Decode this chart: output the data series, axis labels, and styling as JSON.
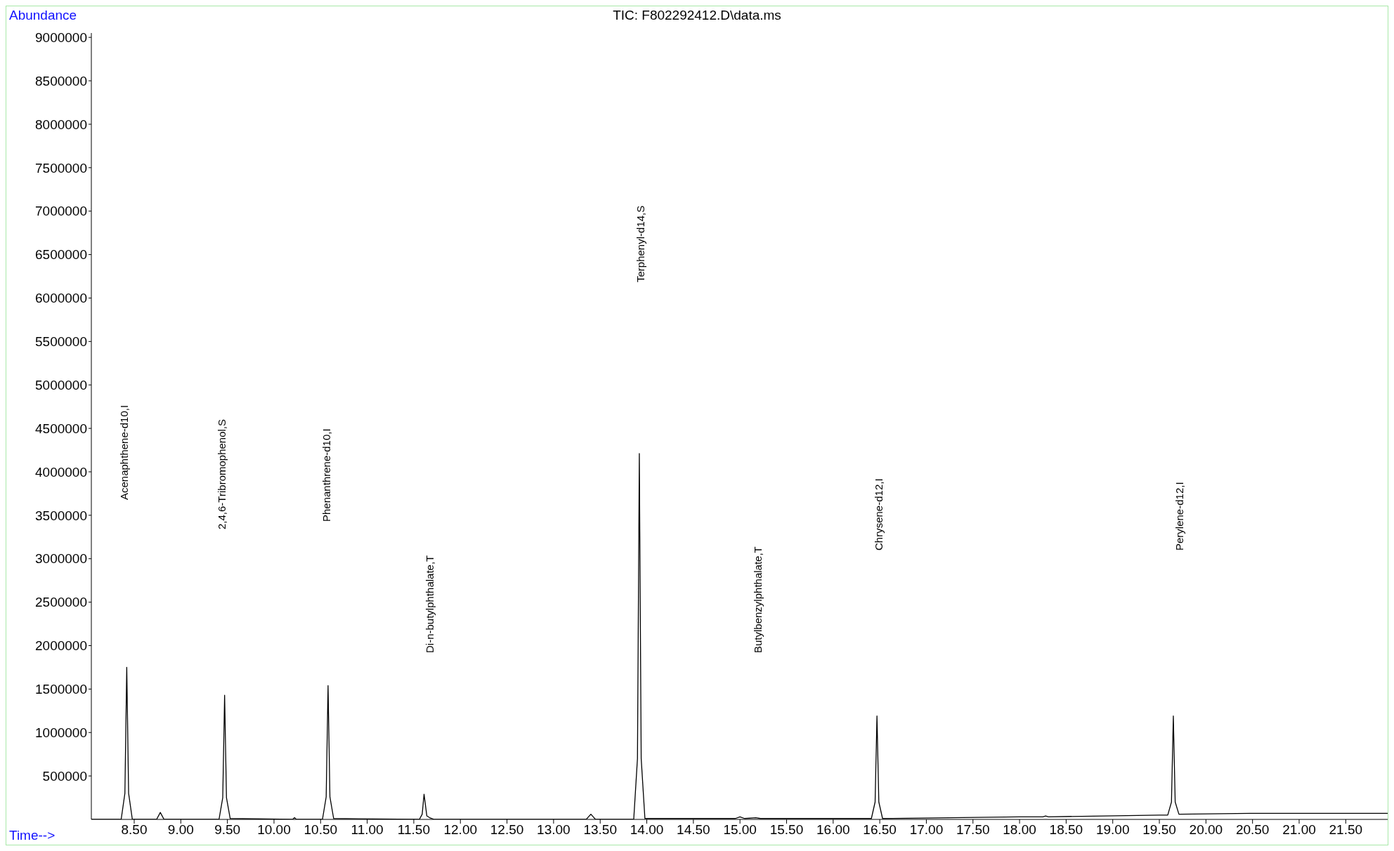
{
  "chart_data": {
    "type": "line",
    "title": "TIC: F802292412.D\\data.ms",
    "xlabel": "Time-->",
    "ylabel": "Abundance",
    "x": [
      8.04,
      8.36,
      8.4,
      8.42,
      8.44,
      8.48,
      8.74,
      8.78,
      8.82,
      9.41,
      9.45,
      9.47,
      9.49,
      9.53,
      10.2,
      10.22,
      10.24,
      10.52,
      10.56,
      10.58,
      10.6,
      10.64,
      11.56,
      11.59,
      11.61,
      11.64,
      11.67,
      11.72,
      13.35,
      13.4,
      13.45,
      13.86,
      13.9,
      13.92,
      13.94,
      13.98,
      14.95,
      15.0,
      15.05,
      15.17,
      15.22,
      16.41,
      16.45,
      16.47,
      16.49,
      16.53,
      18.0,
      18.25,
      18.28,
      18.31,
      19.5,
      19.59,
      19.63,
      19.65,
      19.67,
      19.71,
      20.5,
      21.95
    ],
    "values": [
      0,
      0,
      300000,
      1750000,
      300000,
      0,
      0,
      80000,
      0,
      0,
      250000,
      1430000,
      250000,
      10000,
      0,
      20000,
      0,
      0,
      260000,
      1540000,
      260000,
      10000,
      0,
      60000,
      290000,
      40000,
      20000,
      0,
      0,
      60000,
      0,
      0,
      700000,
      4210000,
      700000,
      10000,
      10000,
      30000,
      10000,
      20000,
      10000,
      10000,
      200000,
      1190000,
      200000,
      10000,
      30000,
      30000,
      40000,
      30000,
      50000,
      50000,
      200000,
      1190000,
      200000,
      60000,
      70000,
      70000
    ],
    "color": "#000000",
    "line_style": "solid",
    "marker": "none",
    "grid": false,
    "legend": false,
    "xlim": [
      8.04,
      21.95
    ],
    "xticks": [
      {
        "value": 8.5,
        "label": "8.50"
      },
      {
        "value": 9,
        "label": "9.00"
      },
      {
        "value": 9.5,
        "label": "9.50"
      },
      {
        "value": 10,
        "label": "10.00"
      },
      {
        "value": 10.5,
        "label": "10.50"
      },
      {
        "value": 11,
        "label": "11.00"
      },
      {
        "value": 11.5,
        "label": "11.50"
      },
      {
        "value": 12,
        "label": "12.00"
      },
      {
        "value": 12.5,
        "label": "12.50"
      },
      {
        "value": 13,
        "label": "13.00"
      },
      {
        "value": 13.5,
        "label": "13.50"
      },
      {
        "value": 14,
        "label": "14.00"
      },
      {
        "value": 14.5,
        "label": "14.50"
      },
      {
        "value": 15,
        "label": "15.00"
      },
      {
        "value": 15.5,
        "label": "15.50"
      },
      {
        "value": 16,
        "label": "16.00"
      },
      {
        "value": 16.5,
        "label": "16.50"
      },
      {
        "value": 17,
        "label": "17.00"
      },
      {
        "value": 17.5,
        "label": "17.50"
      },
      {
        "value": 18,
        "label": "18.00"
      },
      {
        "value": 18.5,
        "label": "18.50"
      },
      {
        "value": 19,
        "label": "19.00"
      },
      {
        "value": 19.5,
        "label": "19.50"
      },
      {
        "value": 20,
        "label": "20.00"
      },
      {
        "value": 20.5,
        "label": "20.50"
      },
      {
        "value": 21,
        "label": "21.00"
      },
      {
        "value": 21.5,
        "label": "21.50"
      }
    ],
    "ylim": [
      0,
      9050000
    ],
    "yticks": [
      500000,
      1000000,
      1500000,
      2000000,
      2500000,
      3000000,
      3500000,
      4000000,
      4500000,
      5000000,
      5500000,
      6000000,
      6500000,
      7000000,
      7500000,
      8000000,
      8500000,
      9000000
    ],
    "annotations": [
      "Acenaphthene-d10,I",
      "2,4,6-Tribromophenol,S",
      "Phenanthrene-d10,I",
      "Di-n-butylphthalate,T",
      "Terphenyl-d14,S",
      "Butylbenzylphthalate,T",
      "Chrysene-d12,I",
      "Perylene-d12,I"
    ]
  }
}
